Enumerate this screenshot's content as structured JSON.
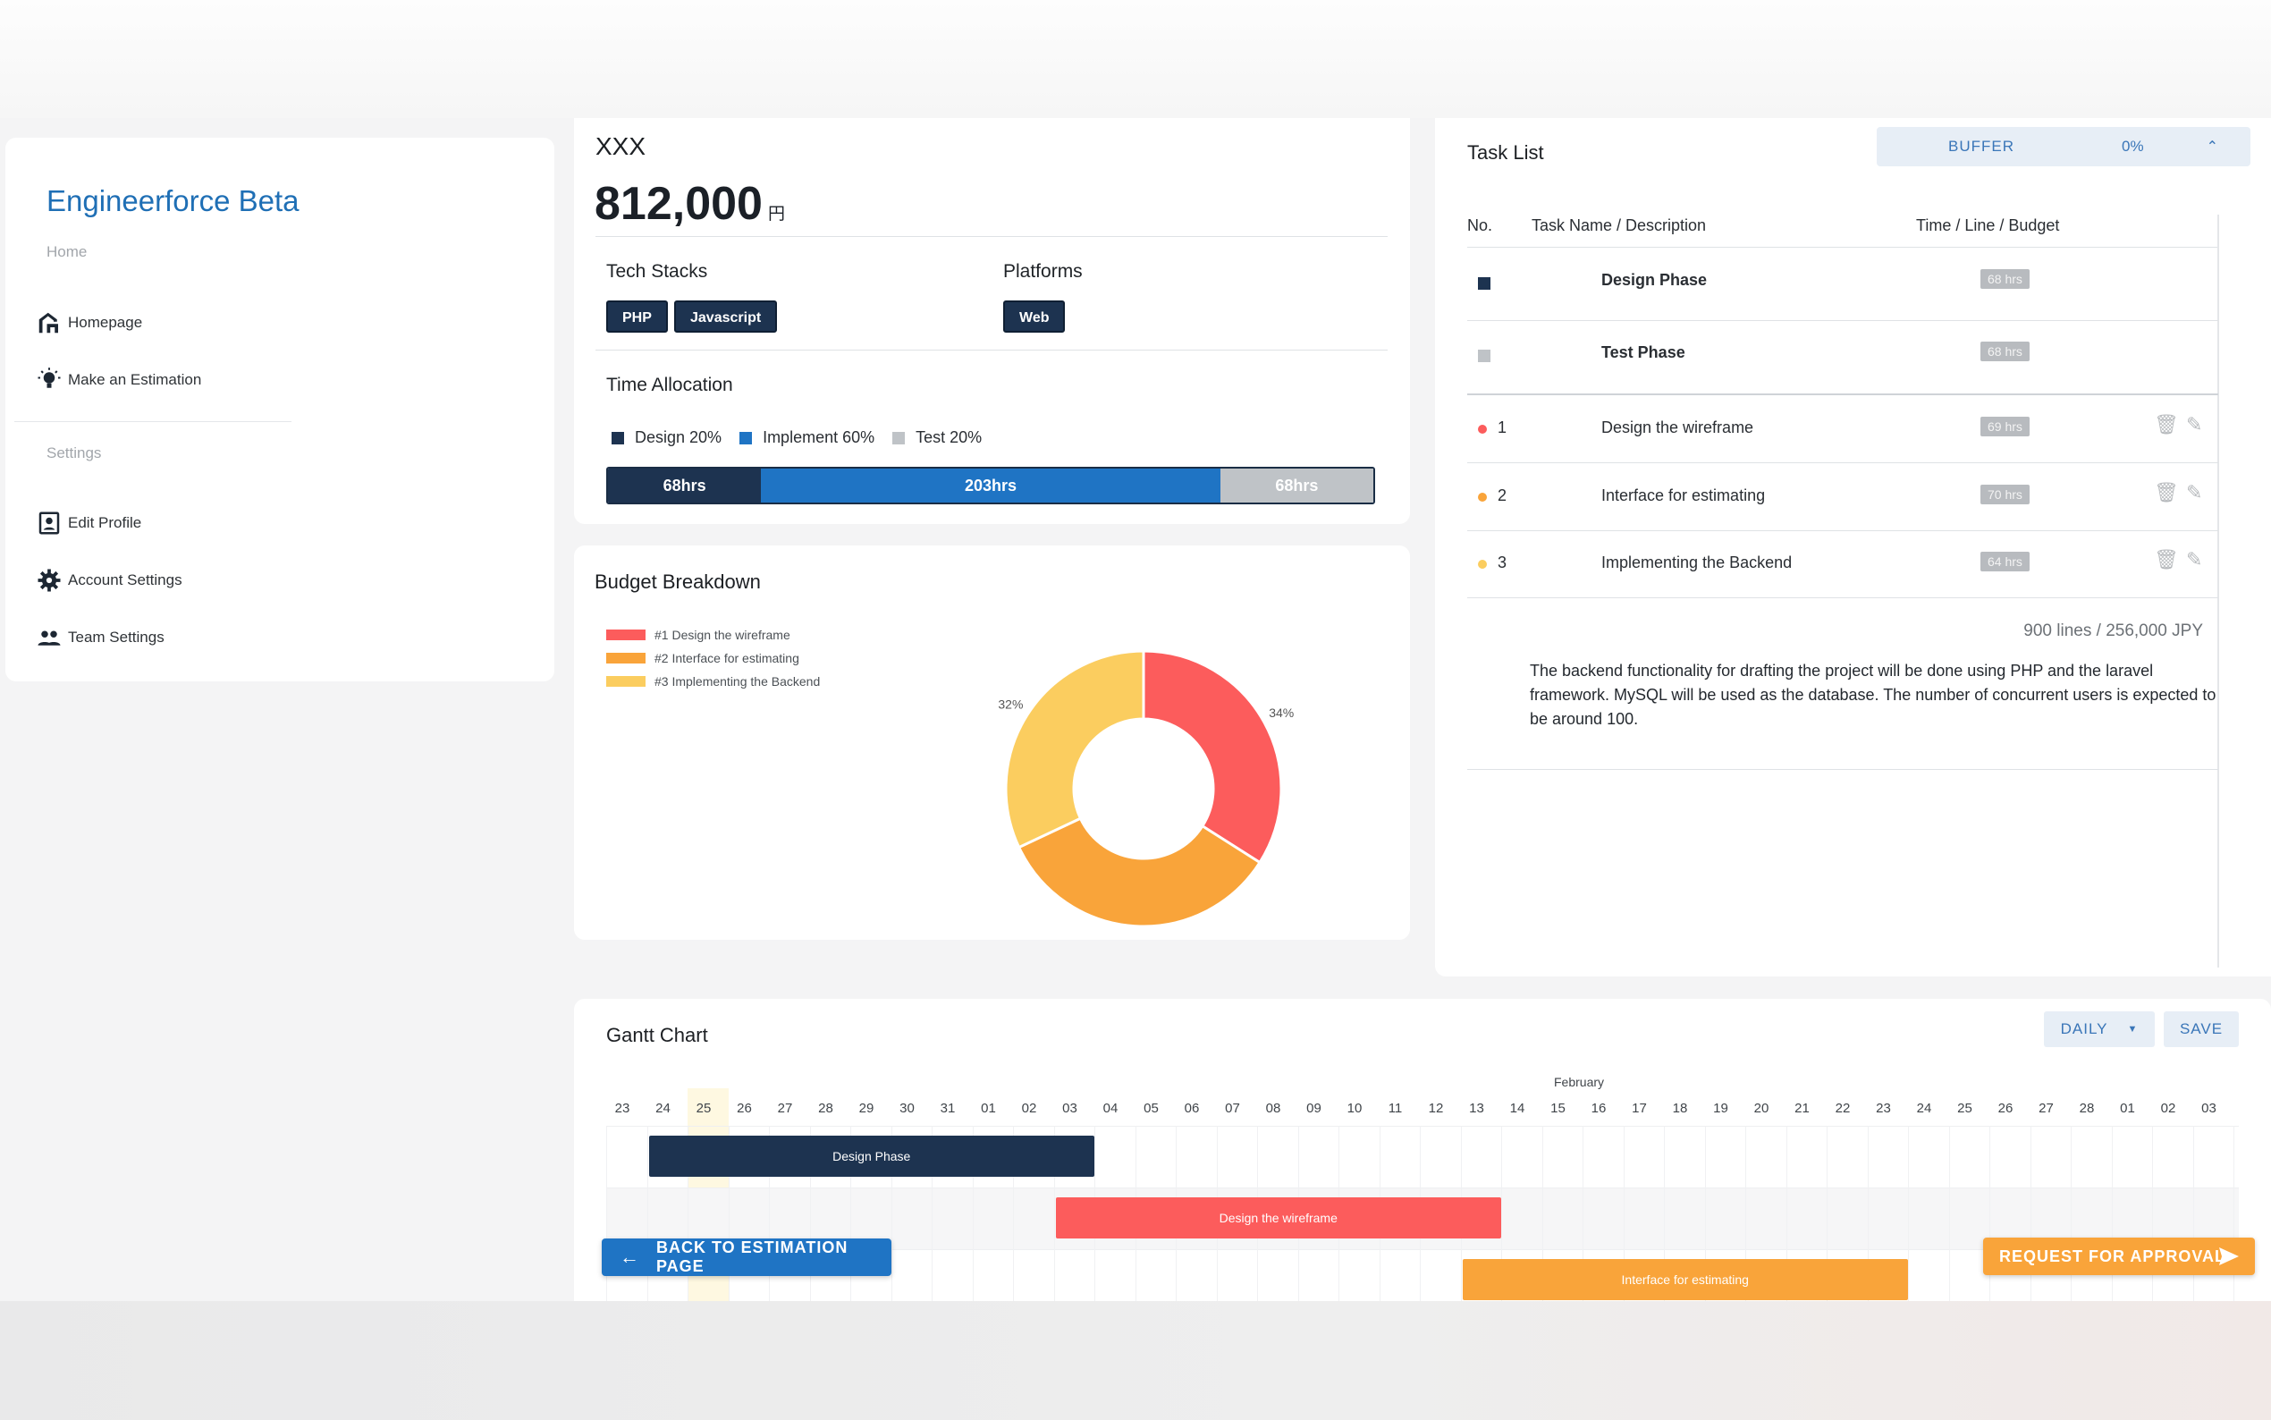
{
  "sidebar": {
    "brand": "Engineerforce",
    "brand_suffix": "Beta",
    "section_home": "Home",
    "section_settings": "Settings",
    "items": [
      {
        "label": "Homepage",
        "icon": "home-icon"
      },
      {
        "label": "Make an Estimation",
        "icon": "lightbulb-icon"
      },
      {
        "label": "Edit Profile",
        "icon": "profile-icon"
      },
      {
        "label": "Account Settings",
        "icon": "gear-icon"
      },
      {
        "label": "Team Settings",
        "icon": "team-icon"
      }
    ]
  },
  "estimate": {
    "title": "XXX",
    "price": "812,000",
    "currency": "円",
    "tech_stacks_label": "Tech Stacks",
    "tech_stacks": [
      "PHP",
      "Javascript"
    ],
    "platforms_label": "Platforms",
    "platforms": [
      "Web"
    ],
    "time_allocation_label": "Time Allocation",
    "allocation": [
      {
        "label": "Design 20%",
        "hours": "68hrs",
        "fraction": 0.2,
        "color": "#1d3350"
      },
      {
        "label": "Implement 60%",
        "hours": "203hrs",
        "fraction": 0.6,
        "color": "#1f74c4"
      },
      {
        "label": "Test 20%",
        "hours": "68hrs",
        "fraction": 0.2,
        "color": "#bfc3c7"
      }
    ]
  },
  "budget": {
    "title": "Budget Breakdown",
    "legend": [
      "#1 Design the wireframe",
      "#2 Interface for estimating",
      "#3 Implementing the Backend"
    ],
    "chart_data": {
      "type": "pie",
      "categories": [
        "#1 Design the wireframe",
        "#2 Interface for estimating",
        "#3 Implementing the Backend"
      ],
      "values": [
        34,
        34,
        32
      ],
      "labels": [
        "34%",
        "34%",
        "32%"
      ],
      "colors": [
        "#fc5c5c",
        "#f9a43a",
        "#fbcd5f"
      ]
    }
  },
  "task_list": {
    "title": "Task List",
    "buffer_label": "BUFFER",
    "buffer_value": "0%",
    "columns": [
      "No.",
      "Task Name / Description",
      "Time / Line / Budget"
    ],
    "phases": [
      {
        "name": "Design Phase",
        "hours": "68 hrs",
        "color": "#1d3350"
      },
      {
        "name": "Test Phase",
        "hours": "68 hrs",
        "color": "#bfc3c7"
      }
    ],
    "tasks": [
      {
        "no": "1",
        "name": "Design the wireframe",
        "hours": "69 hrs",
        "color": "#fc5c5c"
      },
      {
        "no": "2",
        "name": "Interface for estimating",
        "hours": "70 hrs",
        "color": "#f9a43a"
      },
      {
        "no": "3",
        "name": "Implementing the Backend",
        "hours": "64 hrs",
        "color": "#fbcd5f"
      }
    ],
    "summary": "900 lines / 256,000 JPY",
    "description": "The backend functionality for drafting the project will be done using PHP and the laravel framework. MySQL will be used as the database. The number of concurrent users is expected to be around 100."
  },
  "gantt": {
    "title": "Gantt Chart",
    "view_label": "DAILY",
    "save_label": "SAVE",
    "month_label": "February",
    "days": [
      "23",
      "24",
      "25",
      "26",
      "27",
      "28",
      "29",
      "30",
      "31",
      "01",
      "02",
      "03",
      "04",
      "05",
      "06",
      "07",
      "08",
      "09",
      "10",
      "11",
      "12",
      "13",
      "14",
      "15",
      "16",
      "17",
      "18",
      "19",
      "20",
      "21",
      "22",
      "23",
      "24",
      "25",
      "26",
      "27",
      "28",
      "01",
      "02",
      "03"
    ],
    "bars": [
      {
        "label": "Design Phase",
        "color": "#1d3350",
        "start": 1,
        "span": 11,
        "row": 0
      },
      {
        "label": "Design the wireframe",
        "color": "#fc5c5c",
        "start": 11,
        "span": 11,
        "row": 1
      },
      {
        "label": "Interface for estimating",
        "color": "#f9a43a",
        "start": 21,
        "span": 11,
        "row": 2
      }
    ]
  },
  "actions": {
    "back_label": "BACK TO ESTIMATION PAGE",
    "approve_label": "REQUEST FOR APPROVAL"
  }
}
